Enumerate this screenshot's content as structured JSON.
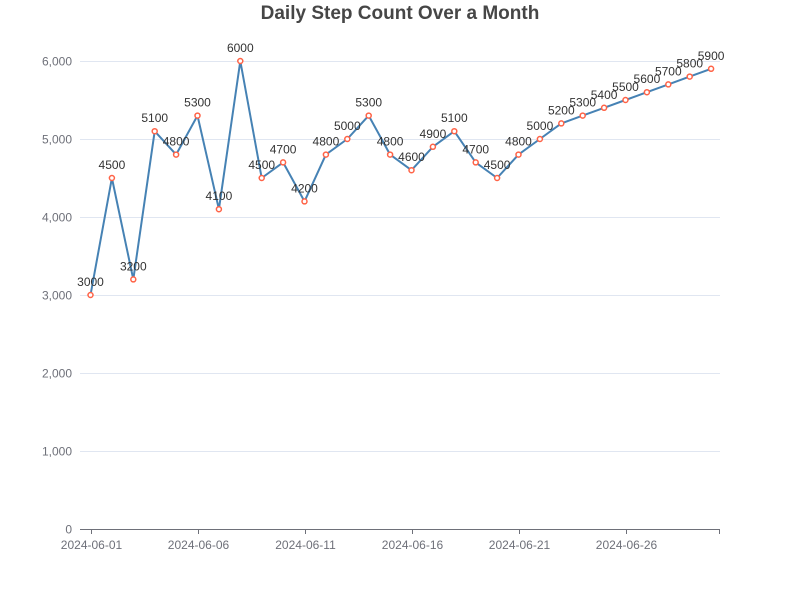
{
  "chart_data": {
    "type": "line",
    "title": "Daily Step Count Over a Month",
    "xlabel": "",
    "ylabel": "",
    "x": [
      "2024-06-01",
      "2024-06-02",
      "2024-06-03",
      "2024-06-04",
      "2024-06-05",
      "2024-06-06",
      "2024-06-07",
      "2024-06-08",
      "2024-06-09",
      "2024-06-10",
      "2024-06-11",
      "2024-06-12",
      "2024-06-13",
      "2024-06-14",
      "2024-06-15",
      "2024-06-16",
      "2024-06-17",
      "2024-06-18",
      "2024-06-19",
      "2024-06-20",
      "2024-06-21",
      "2024-06-22",
      "2024-06-23",
      "2024-06-24",
      "2024-06-25",
      "2024-06-26",
      "2024-06-27",
      "2024-06-28",
      "2024-06-29",
      "2024-06-30"
    ],
    "series": [
      {
        "values": [
          3000,
          4500,
          3200,
          5100,
          4800,
          5300,
          4100,
          6000,
          4500,
          4700,
          4200,
          4800,
          5000,
          5300,
          4800,
          4600,
          4900,
          5100,
          4700,
          4500,
          4800,
          5000,
          5200,
          5300,
          5400,
          5500,
          5600,
          5700,
          5800,
          5900
        ],
        "line_color": "#4682b4",
        "marker_color": "#ff6347"
      }
    ],
    "x_tick_labels": [
      "2024-06-01",
      "2024-06-06",
      "2024-06-11",
      "2024-06-16",
      "2024-06-21",
      "2024-06-26"
    ],
    "y_ticks": [
      0,
      1000,
      2000,
      3000,
      4000,
      5000,
      6000
    ],
    "y_tick_labels": [
      "0",
      "1,000",
      "2,000",
      "3,000",
      "4,000",
      "5,000",
      "6,000"
    ],
    "ylim": [
      0,
      6500
    ],
    "grid": true,
    "legend": "none"
  }
}
